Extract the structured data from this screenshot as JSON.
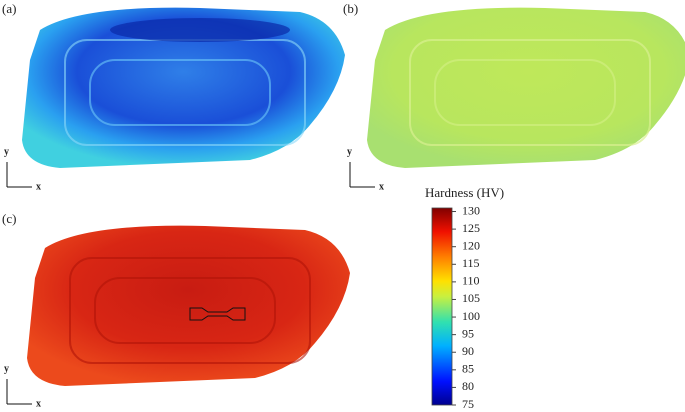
{
  "panels": [
    {
      "label": "(a)",
      "y_label": "y",
      "x_label": "x"
    },
    {
      "label": "(b)",
      "y_label": "y",
      "x_label": "x"
    },
    {
      "label": "(c)",
      "y_label": "y",
      "x_label": "x"
    }
  ],
  "colorbar": {
    "title": "Hardness (HV)",
    "range": [
      75,
      131
    ],
    "ticks": [
      130,
      125,
      120,
      115,
      110,
      105,
      100,
      95,
      90,
      85,
      80,
      75
    ]
  }
}
